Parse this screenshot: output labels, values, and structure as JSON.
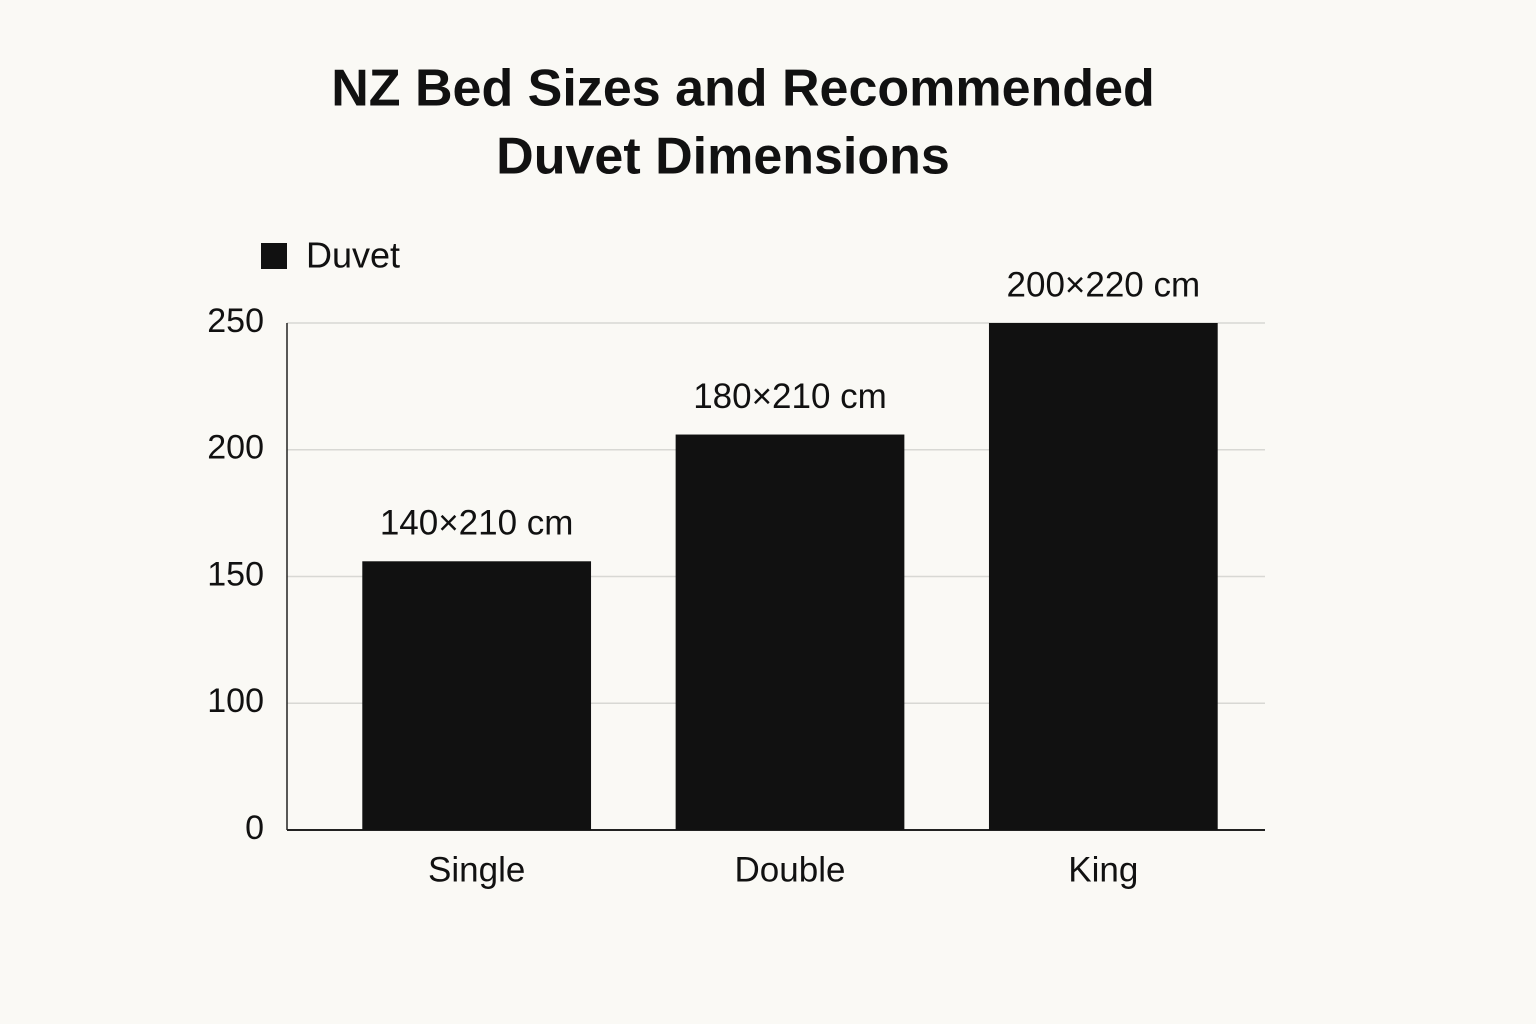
{
  "chart_data": {
    "type": "bar",
    "title": [
      "NZ Bed Sizes and Recommended",
      "Duvet Dimensions"
    ],
    "categories": [
      "Single",
      "Double",
      "King"
    ],
    "series": [
      {
        "name": "Duvet",
        "color": "#111111",
        "values": [
          156,
          206,
          250
        ]
      }
    ],
    "annotations": [
      "140×210 cm",
      "180×210 cm",
      "200×220 cm"
    ],
    "ylim": [
      50,
      250
    ],
    "yticks": [
      {
        "value": 50,
        "label": "0"
      },
      100,
      150,
      200,
      250
    ],
    "grid": true
  }
}
